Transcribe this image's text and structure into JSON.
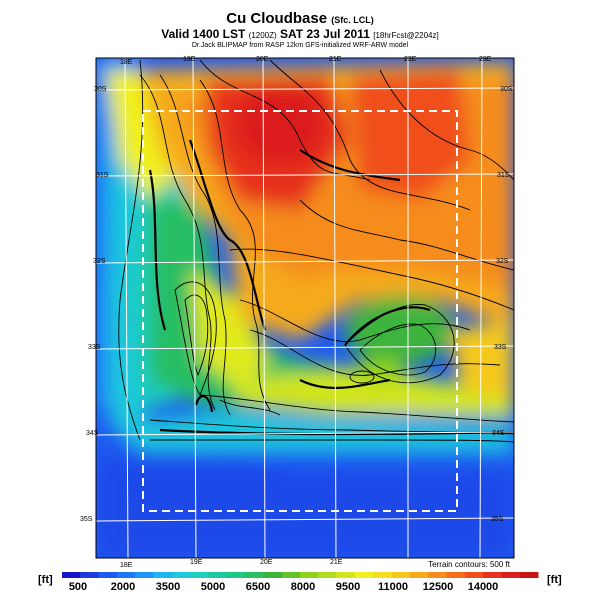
{
  "title": {
    "main": "Cu Cloudbase",
    "main_suffix": "(Sfc. LCL)",
    "valid": "Valid 1400 LST",
    "valid_code": "(1200Z)",
    "date": "SAT 23 Jul 2011",
    "forecast": "[18hrFcst@2204z]",
    "credit": "Dr.Jack BLIPMAP from RASP 12km GFS-initialized WRF-ARW model"
  },
  "map": {
    "lon_labels_top": [
      "18E",
      "19E",
      "20E",
      "21E",
      "22E",
      "23E"
    ],
    "lon_labels_bottom": [
      "18E",
      "19E",
      "20E",
      "21E"
    ],
    "lat_labels_right": [
      "30S",
      "31S",
      "32S",
      "33S",
      "34S",
      "35S"
    ],
    "lat_labels_left": [
      "30S",
      "31S",
      "32S",
      "33S",
      "34S",
      "35S"
    ],
    "terrain_note": "Terrain contours: 500 ft"
  },
  "colorbar": {
    "unit_label": "[ft]",
    "tick_labels": [
      "500",
      "2000",
      "3500",
      "5000",
      "6500",
      "8000",
      "9500",
      "11000",
      "12500",
      "14000"
    ],
    "colors": [
      "#1414c8",
      "#1e3cdc",
      "#1e5af0",
      "#1e78f5",
      "#1e96f5",
      "#1eb4f0",
      "#1ec8dc",
      "#1ecdbe",
      "#1ec8a0",
      "#1ec882",
      "#28be64",
      "#3cb43c",
      "#64c328",
      "#8cd21e",
      "#b4dc1e",
      "#d2e61e",
      "#f0f01e",
      "#f5dc1e",
      "#f5c81e",
      "#f5aa1e",
      "#f58c1e",
      "#f56e1e",
      "#f0501e",
      "#e6321e",
      "#dc1e1e",
      "#c81414"
    ]
  }
}
